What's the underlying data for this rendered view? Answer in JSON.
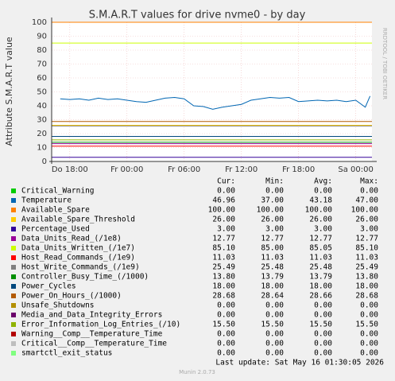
{
  "chart_data": {
    "type": "line",
    "title": "S.M.A.R.T values for drive nvme0 - by day",
    "y_label": "Attribute S.M.A.R.T value",
    "side_text": "RRDTOOL / TOBI OETIKER",
    "xlim": [
      16.1,
      49.7
    ],
    "xticks": [
      {
        "value": 18,
        "label": "Do 18:00"
      },
      {
        "value": 24,
        "label": "Fr 00:00"
      },
      {
        "value": 30,
        "label": "Fr 06:00"
      },
      {
        "value": 36,
        "label": "Fr 12:00"
      },
      {
        "value": 42,
        "label": "Fr 18:00"
      },
      {
        "value": 48,
        "label": "Sa 00:00"
      }
    ],
    "ylim": [
      0,
      100
    ],
    "yticks": [
      0,
      10,
      20,
      30,
      40,
      50,
      60,
      70,
      80,
      90,
      100
    ],
    "grid": true,
    "columns": [
      "Cur:",
      "Min:",
      "Avg:",
      "Max:"
    ],
    "series": [
      {
        "name": "Critical_Warning",
        "color": "#00cc00",
        "stats": [
          "0.00",
          "0.00",
          "0.00",
          "0.00"
        ]
      },
      {
        "name": "Temperature",
        "color": "#0066b3",
        "stats": [
          "46.96",
          "37.00",
          "43.18",
          "47.00"
        ],
        "x": [
          17,
          18,
          19,
          20,
          21,
          22,
          23,
          24,
          25,
          26,
          27,
          28,
          29,
          30,
          31,
          32,
          33,
          34,
          35,
          36,
          37,
          38,
          39,
          40,
          41,
          42,
          43,
          44,
          45,
          46,
          47,
          48,
          49,
          49.5
        ],
        "values": [
          45,
          44.5,
          45,
          44,
          45.5,
          44.5,
          45,
          44,
          43,
          42.5,
          44,
          45.5,
          46,
          45,
          40,
          39.5,
          37.5,
          39,
          40,
          41,
          44,
          45,
          46,
          45.5,
          46,
          43,
          43.5,
          44,
          43.5,
          44,
          43,
          44,
          39,
          46.96
        ]
      },
      {
        "name": "Available_Spare",
        "color": "#ff8000",
        "stats": [
          "100.00",
          "100.00",
          "100.00",
          "100.00"
        ]
      },
      {
        "name": "Available_Spare_Threshold",
        "color": "#ffcc00",
        "stats": [
          "26.00",
          "26.00",
          "26.00",
          "26.00"
        ]
      },
      {
        "name": "Percentage_Used",
        "color": "#330099",
        "stats": [
          "3.00",
          "3.00",
          "3.00",
          "3.00"
        ]
      },
      {
        "name": "Data_Units_Read_(/1e8)",
        "color": "#990099",
        "stats": [
          "12.77",
          "12.77",
          "12.77",
          "12.77"
        ]
      },
      {
        "name": "Data_Units_Written_(/1e7)",
        "color": "#ccff00",
        "stats": [
          "85.10",
          "85.00",
          "85.05",
          "85.10"
        ]
      },
      {
        "name": "Host_Read_Commands_(/1e9)",
        "color": "#ff0000",
        "stats": [
          "11.03",
          "11.03",
          "11.03",
          "11.03"
        ]
      },
      {
        "name": "Host_Write_Commands_(/1e9)",
        "color": "#808080",
        "stats": [
          "25.49",
          "25.48",
          "25.48",
          "25.49"
        ]
      },
      {
        "name": "Controller_Busy_Time_(/1000)",
        "color": "#008f00",
        "stats": [
          "13.80",
          "13.79",
          "13.79",
          "13.80"
        ]
      },
      {
        "name": "Power_Cycles",
        "color": "#00487d",
        "stats": [
          "18.00",
          "18.00",
          "18.00",
          "18.00"
        ]
      },
      {
        "name": "Power_On_Hours_(/1000)",
        "color": "#b35a00",
        "stats": [
          "28.68",
          "28.64",
          "28.66",
          "28.68"
        ]
      },
      {
        "name": "Unsafe_Shutdowns",
        "color": "#b38f00",
        "stats": [
          "0.00",
          "0.00",
          "0.00",
          "0.00"
        ]
      },
      {
        "name": "Media_and_Data_Integrity_Errors",
        "color": "#6b006b",
        "stats": [
          "0.00",
          "0.00",
          "0.00",
          "0.00"
        ]
      },
      {
        "name": "Error_Information_Log_Entries_(/10)",
        "color": "#8fb300",
        "stats": [
          "15.50",
          "15.50",
          "15.50",
          "15.50"
        ]
      },
      {
        "name": "Warning__Comp__Temperature_Time",
        "color": "#b30000",
        "stats": [
          "0.00",
          "0.00",
          "0.00",
          "0.00"
        ]
      },
      {
        "name": "Critical__Comp__Temperature_Time",
        "color": "#bebebe",
        "stats": [
          "0.00",
          "0.00",
          "0.00",
          "0.00"
        ]
      },
      {
        "name": "smartctl_exit_status",
        "color": "#80ff80",
        "stats": [
          "0.00",
          "0.00",
          "0.00",
          "0.00"
        ]
      }
    ],
    "last_update": "Last update: Sat May 16 01:30:05 2026",
    "footer": "Munin 2.0.73"
  }
}
